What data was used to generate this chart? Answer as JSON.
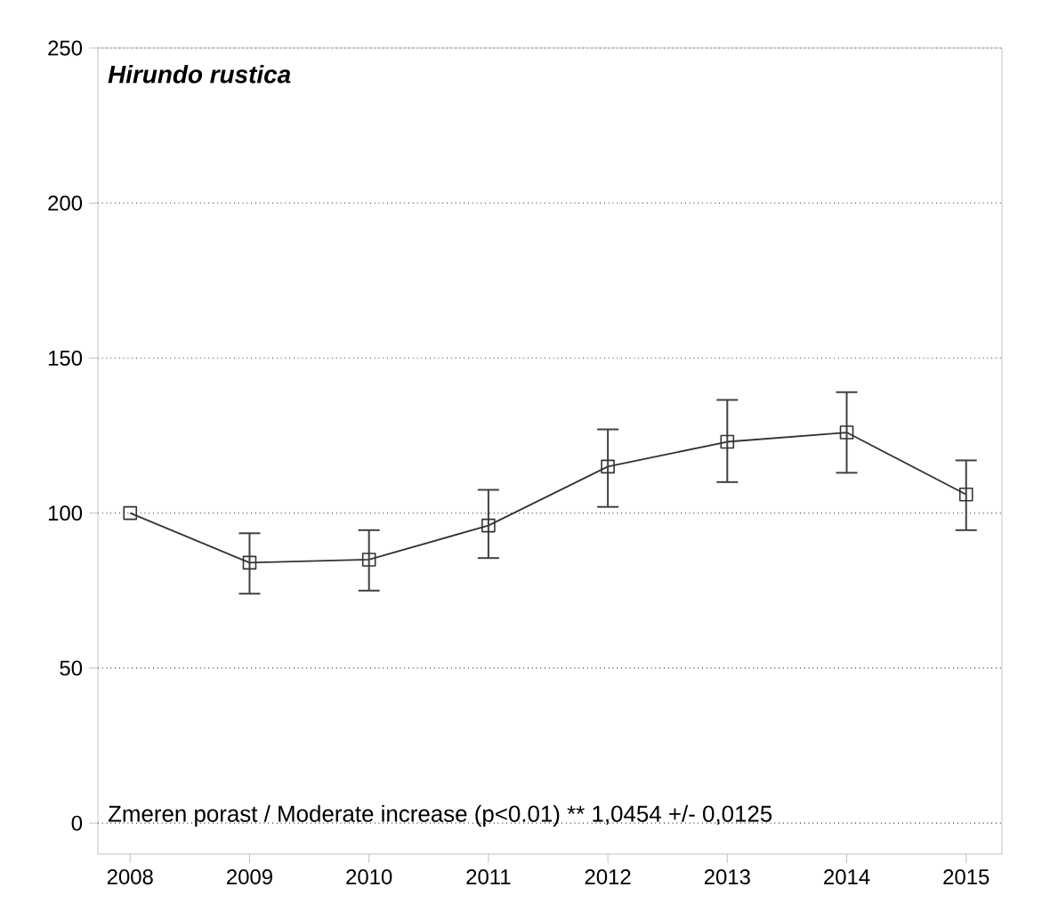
{
  "chart_data": {
    "type": "line",
    "title": "Hirundo rustica",
    "x": [
      2008,
      2009,
      2010,
      2011,
      2012,
      2013,
      2014,
      2015
    ],
    "series": [
      {
        "color": "#333333",
        "values": [
          100,
          84,
          85,
          96,
          115,
          123,
          126,
          106
        ],
        "errors": [
          null,
          [
            74,
            93.5
          ],
          [
            75,
            94.5
          ],
          [
            85.5,
            107.5
          ],
          [
            102,
            127
          ],
          [
            110,
            136.5
          ],
          [
            113,
            139
          ],
          [
            94.5,
            117
          ]
        ]
      }
    ],
    "xlim": [
      2007.73,
      2015.3
    ],
    "xticks": [
      2008,
      2009,
      2010,
      2011,
      2012,
      2013,
      2014,
      2015
    ],
    "ylim": [
      -10,
      250
    ],
    "yticks": [
      0,
      50,
      100,
      150,
      200,
      250
    ],
    "grid": "y",
    "marker": "square",
    "line_style": "solid",
    "annotations": [
      "Zmeren porast / Moderate increase (p<0.01) **  1,0454 +/- 0,0125"
    ]
  }
}
